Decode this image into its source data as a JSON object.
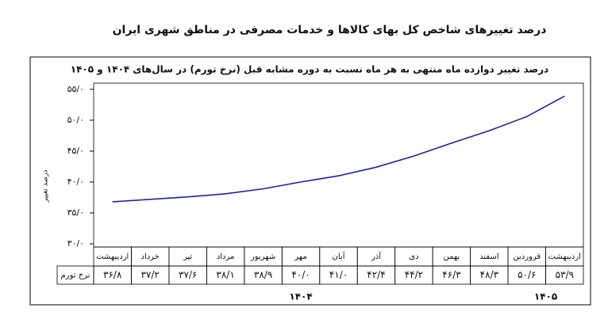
{
  "chart_data": {
    "type": "line",
    "title": "درصد تغییرهای شاخص کل بهای کالاها و خدمات مصرفی در مناطق شهری ایران",
    "subtitle": "درصد تغییر دوازده ماه منتهی به هر ماه نسبت به دوره مشابه قبل (نرخ تورم) در سال‌های ۱۴۰۴ و ۱۴۰۵",
    "y_label": "درصد تغییر",
    "row_label": "نرخ تورم",
    "categories": [
      "اردیبهشت",
      "خرداد",
      "تیر",
      "مرداد",
      "شهریور",
      "مهر",
      "آبان",
      "آذر",
      "دی",
      "بهمن",
      "اسفند",
      "فروردین",
      "اردیبهشت"
    ],
    "years": [
      "۱۴۰۴",
      "۱۴۰۵"
    ],
    "values": [
      36.8,
      37.2,
      37.6,
      38.1,
      38.9,
      40.0,
      41.0,
      42.4,
      44.2,
      46.3,
      48.3,
      50.6,
      53.9
    ],
    "value_labels": [
      "۳۶/۸",
      "۳۷/۲",
      "۳۷/۶",
      "۳۸/۱",
      "۳۸/۹",
      "۴۰/۰",
      "۴۱/۰",
      "۴۲/۴",
      "۴۴/۲",
      "۴۶/۳",
      "۴۸/۳",
      "۵۰/۶",
      "۵۳/۹"
    ],
    "color": "#1f1fa8",
    "ylim": [
      30,
      56
    ],
    "yticks": [
      {
        "value": 30,
        "label": "۳۰/۰"
      },
      {
        "value": 35,
        "label": "۳۵/۰"
      },
      {
        "value": 40,
        "label": "۴۰/۰"
      },
      {
        "value": 45,
        "label": "۴۵/۰"
      },
      {
        "value": 50,
        "label": "۵۰/۰"
      },
      {
        "value": 55,
        "label": "۵۵/۰"
      }
    ],
    "grid": false
  }
}
